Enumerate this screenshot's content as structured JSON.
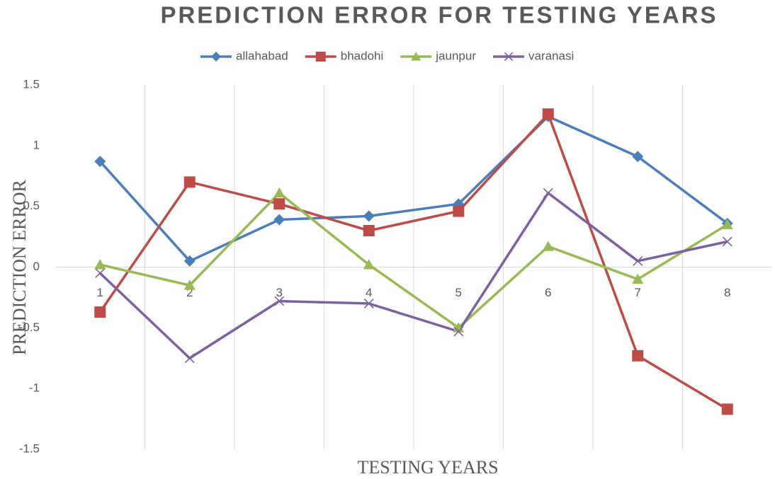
{
  "chart_data": {
    "type": "line",
    "title": "PREDICTION ERROR FOR TESTING YEARS",
    "x_label": "TESTING YEARS",
    "y_label": "PREDICTION ERROR",
    "categories": [
      "1",
      "2",
      "3",
      "4",
      "5",
      "6",
      "7",
      "8"
    ],
    "series": [
      {
        "name": "allahabad",
        "color": "#4a7ebb",
        "marker": "diamond",
        "values": [
          0.87,
          0.05,
          0.39,
          0.42,
          0.52,
          1.24,
          0.91,
          0.36
        ]
      },
      {
        "name": "bhadohi",
        "color": "#be4b48",
        "marker": "square",
        "values": [
          -0.37,
          0.7,
          0.52,
          0.3,
          0.46,
          1.26,
          -0.73,
          -1.17
        ]
      },
      {
        "name": "jaunpur",
        "color": "#98b954",
        "marker": "triangle",
        "values": [
          0.02,
          -0.15,
          0.61,
          0.02,
          -0.5,
          0.17,
          -0.1,
          0.35
        ]
      },
      {
        "name": "varanasi",
        "color": "#7d60a0",
        "marker": "x",
        "values": [
          -0.05,
          -0.75,
          -0.28,
          -0.3,
          -0.53,
          0.61,
          0.05,
          0.21
        ]
      }
    ],
    "ylim": [
      -1.5,
      1.5
    ],
    "yticks": [
      -1.5,
      -1,
      -0.5,
      0,
      0.5,
      1,
      1.5
    ],
    "legend": "top"
  }
}
